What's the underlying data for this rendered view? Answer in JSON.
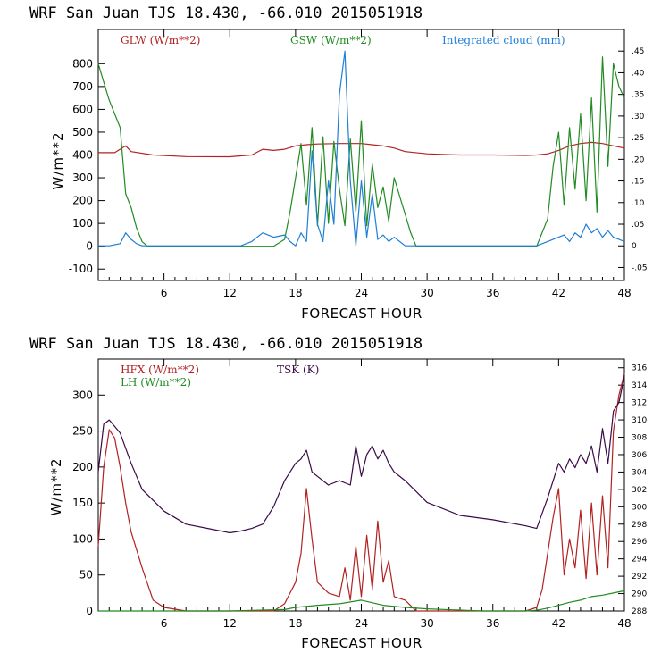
{
  "chart_data": [
    {
      "type": "line",
      "title": "WRF  San Juan TJS  18.430, -66.010  2015051918",
      "xlabel": "FORECAST HOUR",
      "ylabel": "W/m**2",
      "xlim": [
        0,
        48
      ],
      "ylim": [
        -150,
        950
      ],
      "y2lim": [
        -0.08,
        0.5
      ],
      "x_ticks": [
        6,
        12,
        18,
        24,
        30,
        36,
        42,
        48
      ],
      "y_ticks": [
        -100,
        0,
        100,
        200,
        300,
        400,
        500,
        600,
        700,
        800
      ],
      "y2_ticks": [
        -0.05,
        0,
        0.05,
        0.1,
        0.15,
        0.2,
        0.25,
        0.3,
        0.35,
        0.4,
        0.45
      ],
      "y2_tick_labels": [
        "-.05",
        "0",
        ".05",
        ".10",
        ".15",
        ".20",
        ".25",
        ".30",
        ".35",
        ".40",
        ".45"
      ],
      "colors": {
        "GLW": "#b22222",
        "GSW": "#228b22",
        "cloud": "#1e7fd6"
      },
      "series": [
        {
          "name": "GLW (W/m**2)",
          "axis": "left",
          "x": [
            0,
            1.5,
            2.5,
            3,
            5,
            8,
            12,
            14,
            15,
            16,
            17,
            18,
            19,
            20,
            22,
            24,
            25,
            26,
            27,
            28,
            30,
            33,
            36,
            39,
            40,
            41,
            42,
            43,
            44,
            45,
            46,
            47,
            48
          ],
          "values": [
            410,
            410,
            440,
            415,
            400,
            393,
            392,
            400,
            425,
            420,
            425,
            440,
            445,
            448,
            450,
            450,
            445,
            440,
            430,
            415,
            405,
            400,
            400,
            398,
            400,
            405,
            420,
            440,
            450,
            455,
            450,
            440,
            430
          ]
        },
        {
          "name": "GSW (W/m**2)",
          "axis": "left",
          "x": [
            0,
            0.5,
            1,
            1.5,
            2,
            2.5,
            3,
            3.5,
            4,
            4.5,
            5,
            6,
            10,
            14,
            16,
            17,
            17.5,
            18,
            18.5,
            19,
            19.5,
            20,
            20.5,
            21,
            21.5,
            22,
            22.5,
            23,
            23.5,
            24,
            24.5,
            25,
            25.5,
            26,
            26.5,
            27,
            27.5,
            28,
            28.5,
            29,
            30,
            35,
            40,
            41,
            41.5,
            42,
            42.5,
            43,
            43.5,
            44,
            44.5,
            45,
            45.5,
            46,
            46.5,
            47,
            47.5,
            48
          ],
          "values": [
            800,
            720,
            640,
            580,
            520,
            230,
            170,
            80,
            20,
            0,
            0,
            0,
            0,
            0,
            0,
            30,
            150,
            300,
            450,
            180,
            520,
            90,
            480,
            100,
            460,
            250,
            90,
            470,
            150,
            550,
            90,
            360,
            170,
            260,
            110,
            300,
            220,
            140,
            60,
            0,
            0,
            0,
            0,
            120,
            350,
            500,
            180,
            520,
            250,
            580,
            200,
            650,
            150,
            830,
            350,
            800,
            700,
            650
          ]
        },
        {
          "name": "Integrated cloud (mm)",
          "axis": "right",
          "x": [
            0,
            1,
            2,
            2.5,
            3,
            3.5,
            4,
            6,
            10,
            13,
            14,
            15,
            16,
            17,
            17.5,
            18,
            18.5,
            19,
            19.5,
            20,
            20.5,
            21,
            21.5,
            22,
            22.5,
            23,
            23.5,
            24,
            24.5,
            25,
            25.5,
            26,
            26.5,
            27,
            28,
            30,
            35,
            40,
            41,
            42,
            42.5,
            43,
            43.5,
            44,
            44.5,
            45,
            45.5,
            46,
            46.5,
            47,
            48
          ],
          "values": [
            0,
            0,
            0.005,
            0.03,
            0.015,
            0.005,
            0,
            0,
            0,
            0,
            0.01,
            0.03,
            0.02,
            0.025,
            0.01,
            0,
            0.03,
            0.01,
            0.22,
            0.05,
            0.01,
            0.15,
            0.05,
            0.35,
            0.45,
            0.15,
            0,
            0.15,
            0.02,
            0.12,
            0.015,
            0.025,
            0.01,
            0.02,
            0,
            0,
            0,
            0,
            0.01,
            0.02,
            0.025,
            0.01,
            0.03,
            0.02,
            0.05,
            0.03,
            0.04,
            0.02,
            0.035,
            0.02,
            0.01
          ]
        }
      ]
    },
    {
      "type": "line",
      "title": "WRF  San Juan TJS  18.430, -66.010  2015051918",
      "xlabel": "FORECAST HOUR",
      "ylabel": "W/m**2",
      "xlim": [
        0,
        48
      ],
      "ylim": [
        0,
        350
      ],
      "y2lim": [
        288,
        317
      ],
      "x_ticks": [
        6,
        12,
        18,
        24,
        30,
        36,
        42,
        48
      ],
      "y_ticks": [
        0,
        50,
        100,
        150,
        200,
        250,
        300
      ],
      "y2_ticks": [
        288,
        290,
        292,
        294,
        296,
        298,
        300,
        302,
        304,
        306,
        308,
        310,
        312,
        314,
        316
      ],
      "colors": {
        "HFX": "#b22222",
        "LH": "#228b22",
        "TSK": "#3a0a4a"
      },
      "series": [
        {
          "name": "HFX (W/m**2)",
          "axis": "left",
          "x": [
            0,
            0.5,
            1,
            1.5,
            2,
            2.5,
            3,
            4,
            5,
            6,
            8,
            12,
            14,
            16,
            17,
            18,
            18.5,
            19,
            19.5,
            20,
            21,
            22,
            22.5,
            23,
            23.5,
            24,
            24.5,
            25,
            25.5,
            26,
            26.5,
            27,
            28,
            29,
            30,
            36,
            39,
            40,
            40.5,
            41,
            41.5,
            42,
            42.5,
            43,
            43.5,
            44,
            44.5,
            45,
            45.5,
            46,
            46.5,
            47,
            47.5,
            48
          ],
          "values": [
            90,
            200,
            252,
            240,
            200,
            150,
            110,
            60,
            15,
            5,
            0,
            0,
            0,
            0,
            10,
            40,
            80,
            170,
            100,
            40,
            25,
            20,
            60,
            15,
            90,
            20,
            105,
            30,
            125,
            40,
            70,
            20,
            15,
            0,
            0,
            0,
            0,
            5,
            30,
            80,
            130,
            170,
            50,
            100,
            60,
            140,
            45,
            150,
            50,
            160,
            60,
            250,
            300,
            330
          ]
        },
        {
          "name": "LH (W/m**2)",
          "axis": "left",
          "x": [
            0,
            6,
            12,
            17,
            18,
            20,
            22,
            24,
            26,
            28,
            30,
            35,
            39,
            40,
            41,
            42,
            43,
            44,
            45,
            46,
            47,
            48
          ],
          "values": [
            0,
            0,
            0,
            2,
            5,
            8,
            10,
            15,
            8,
            5,
            3,
            0,
            0,
            1,
            4,
            8,
            12,
            15,
            20,
            22,
            25,
            28
          ]
        },
        {
          "name": "TSK (K)",
          "axis": "right",
          "x": [
            0,
            0.5,
            1,
            2,
            3,
            4,
            6,
            8,
            10,
            12,
            13,
            14,
            15,
            16,
            17,
            18,
            18.5,
            19,
            19.5,
            20,
            20.5,
            21,
            22,
            23,
            23.5,
            24,
            24.5,
            25,
            25.5,
            26,
            26.5,
            27,
            28,
            30,
            33,
            36,
            39,
            40,
            41,
            42,
            42.5,
            43,
            43.5,
            44,
            44.5,
            45,
            45.5,
            46,
            46.5,
            47,
            47.5,
            48
          ],
          "values": [
            304,
            309.5,
            310,
            308.5,
            305,
            302,
            299.5,
            298,
            297.5,
            297,
            297.2,
            297.5,
            298,
            300,
            303,
            305,
            305.5,
            306.5,
            304,
            303.5,
            303,
            302.5,
            303,
            302.5,
            307,
            303.5,
            306,
            307,
            305.5,
            306.5,
            305,
            304,
            303,
            300.5,
            299,
            298.5,
            297.8,
            297.5,
            301,
            305,
            304,
            305.5,
            304.5,
            306,
            305,
            307,
            304,
            309,
            305,
            311,
            312,
            315
          ]
        }
      ]
    }
  ]
}
